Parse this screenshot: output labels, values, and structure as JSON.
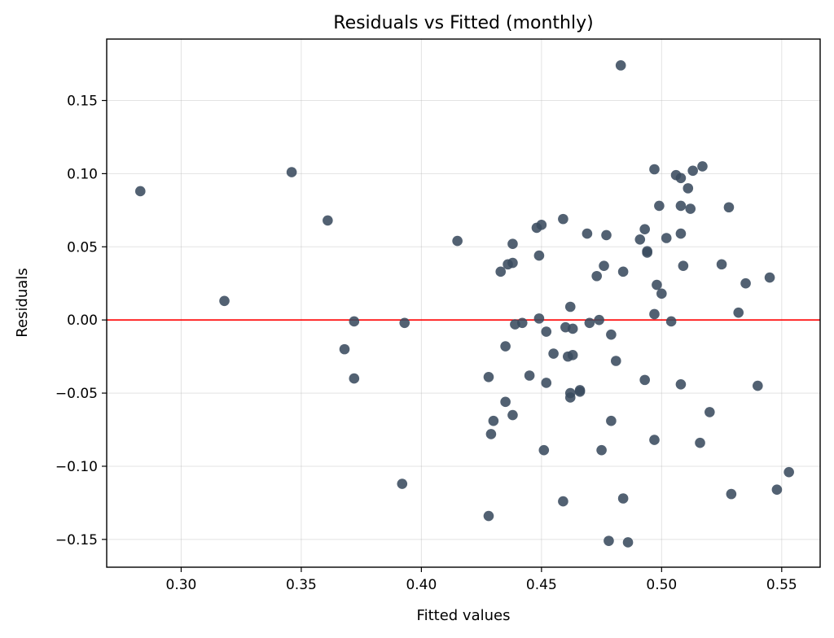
{
  "chart_data": {
    "type": "scatter",
    "title": "Residuals vs Fitted (monthly)",
    "xlabel": "Fitted values",
    "ylabel": "Residuals",
    "xlim": [
      0.269,
      0.566
    ],
    "ylim": [
      -0.169,
      0.192
    ],
    "xticks": [
      0.3,
      0.35,
      0.4,
      0.45,
      0.5,
      0.55
    ],
    "yticks": [
      -0.15,
      -0.1,
      -0.05,
      0.0,
      0.05,
      0.1,
      0.15
    ],
    "xtick_labels": [
      "0.30",
      "0.35",
      "0.40",
      "0.45",
      "0.50",
      "0.55"
    ],
    "ytick_labels": [
      "−0.15",
      "−0.10",
      "−0.05",
      "0.00",
      "0.05",
      "0.10",
      "0.15"
    ],
    "grid": true,
    "reference_line": {
      "y": 0.0,
      "color": "#ff0000"
    },
    "point_color": "#3a4b5e",
    "points": [
      {
        "x": 0.283,
        "y": 0.088
      },
      {
        "x": 0.318,
        "y": 0.013
      },
      {
        "x": 0.346,
        "y": 0.101
      },
      {
        "x": 0.361,
        "y": 0.068
      },
      {
        "x": 0.368,
        "y": -0.02
      },
      {
        "x": 0.372,
        "y": -0.04
      },
      {
        "x": 0.372,
        "y": -0.001
      },
      {
        "x": 0.392,
        "y": -0.112
      },
      {
        "x": 0.393,
        "y": -0.002
      },
      {
        "x": 0.415,
        "y": 0.054
      },
      {
        "x": 0.428,
        "y": -0.134
      },
      {
        "x": 0.428,
        "y": -0.039
      },
      {
        "x": 0.429,
        "y": -0.078
      },
      {
        "x": 0.43,
        "y": -0.069
      },
      {
        "x": 0.433,
        "y": 0.033
      },
      {
        "x": 0.435,
        "y": -0.056
      },
      {
        "x": 0.435,
        "y": -0.018
      },
      {
        "x": 0.436,
        "y": 0.038
      },
      {
        "x": 0.438,
        "y": -0.065
      },
      {
        "x": 0.438,
        "y": 0.039
      },
      {
        "x": 0.438,
        "y": 0.052
      },
      {
        "x": 0.439,
        "y": -0.003
      },
      {
        "x": 0.442,
        "y": -0.002
      },
      {
        "x": 0.445,
        "y": -0.038
      },
      {
        "x": 0.448,
        "y": 0.063
      },
      {
        "x": 0.449,
        "y": 0.044
      },
      {
        "x": 0.449,
        "y": 0.001
      },
      {
        "x": 0.45,
        "y": 0.065
      },
      {
        "x": 0.451,
        "y": -0.089
      },
      {
        "x": 0.452,
        "y": -0.043
      },
      {
        "x": 0.452,
        "y": -0.008
      },
      {
        "x": 0.455,
        "y": -0.023
      },
      {
        "x": 0.459,
        "y": -0.124
      },
      {
        "x": 0.459,
        "y": 0.069
      },
      {
        "x": 0.46,
        "y": -0.005
      },
      {
        "x": 0.461,
        "y": -0.025
      },
      {
        "x": 0.462,
        "y": -0.05
      },
      {
        "x": 0.462,
        "y": -0.053
      },
      {
        "x": 0.462,
        "y": 0.009
      },
      {
        "x": 0.463,
        "y": -0.024
      },
      {
        "x": 0.463,
        "y": -0.006
      },
      {
        "x": 0.466,
        "y": -0.049
      },
      {
        "x": 0.466,
        "y": -0.048
      },
      {
        "x": 0.469,
        "y": 0.059
      },
      {
        "x": 0.47,
        "y": -0.002
      },
      {
        "x": 0.473,
        "y": 0.03
      },
      {
        "x": 0.474,
        "y": 0.0
      },
      {
        "x": 0.475,
        "y": -0.089
      },
      {
        "x": 0.476,
        "y": 0.037
      },
      {
        "x": 0.477,
        "y": 0.058
      },
      {
        "x": 0.478,
        "y": -0.151
      },
      {
        "x": 0.479,
        "y": -0.069
      },
      {
        "x": 0.479,
        "y": -0.01
      },
      {
        "x": 0.481,
        "y": -0.028
      },
      {
        "x": 0.483,
        "y": 0.174
      },
      {
        "x": 0.484,
        "y": -0.122
      },
      {
        "x": 0.484,
        "y": 0.033
      },
      {
        "x": 0.486,
        "y": -0.152
      },
      {
        "x": 0.491,
        "y": 0.055
      },
      {
        "x": 0.493,
        "y": 0.062
      },
      {
        "x": 0.493,
        "y": -0.041
      },
      {
        "x": 0.494,
        "y": 0.047
      },
      {
        "x": 0.494,
        "y": 0.046
      },
      {
        "x": 0.497,
        "y": 0.103
      },
      {
        "x": 0.497,
        "y": -0.082
      },
      {
        "x": 0.497,
        "y": 0.004
      },
      {
        "x": 0.498,
        "y": 0.024
      },
      {
        "x": 0.499,
        "y": 0.078
      },
      {
        "x": 0.5,
        "y": 0.018
      },
      {
        "x": 0.502,
        "y": 0.056
      },
      {
        "x": 0.504,
        "y": -0.001
      },
      {
        "x": 0.506,
        "y": 0.099
      },
      {
        "x": 0.508,
        "y": 0.097
      },
      {
        "x": 0.508,
        "y": 0.078
      },
      {
        "x": 0.508,
        "y": -0.044
      },
      {
        "x": 0.508,
        "y": 0.059
      },
      {
        "x": 0.509,
        "y": 0.037
      },
      {
        "x": 0.511,
        "y": 0.09
      },
      {
        "x": 0.512,
        "y": 0.076
      },
      {
        "x": 0.513,
        "y": 0.102
      },
      {
        "x": 0.516,
        "y": -0.084
      },
      {
        "x": 0.517,
        "y": 0.105
      },
      {
        "x": 0.52,
        "y": -0.063
      },
      {
        "x": 0.525,
        "y": 0.038
      },
      {
        "x": 0.528,
        "y": 0.077
      },
      {
        "x": 0.529,
        "y": -0.119
      },
      {
        "x": 0.532,
        "y": 0.005
      },
      {
        "x": 0.535,
        "y": 0.025
      },
      {
        "x": 0.54,
        "y": -0.045
      },
      {
        "x": 0.545,
        "y": 0.029
      },
      {
        "x": 0.548,
        "y": -0.116
      },
      {
        "x": 0.553,
        "y": -0.104
      }
    ]
  }
}
